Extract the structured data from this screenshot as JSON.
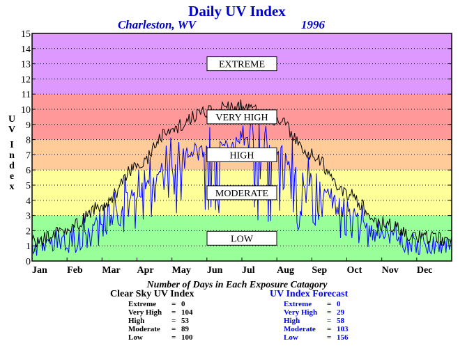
{
  "chart_data": {
    "type": "line",
    "title": "Daily UV Index",
    "subtitle_location": "Charleston, WV",
    "subtitle_year": "1996",
    "ylabel": "UV Index",
    "ylim": [
      0,
      15
    ],
    "yticks": [
      "0",
      "1",
      "2",
      "3",
      "4",
      "5",
      "6",
      "7",
      "8",
      "9",
      "10",
      "11",
      "12",
      "13",
      "14",
      "15"
    ],
    "xticks": [
      "Jan",
      "Feb",
      "Mar",
      "Apr",
      "May",
      "Jun",
      "Jul",
      "Aug",
      "Sep",
      "Oct",
      "Nov",
      "Dec"
    ],
    "grid": true,
    "bands": [
      {
        "label": "LOW",
        "from": 0,
        "to": 3,
        "color": "#99ff99"
      },
      {
        "label": "MODERATE",
        "from": 3,
        "to": 6,
        "color": "#ffff99"
      },
      {
        "label": "HIGH",
        "from": 6,
        "to": 8,
        "color": "#ffcc99"
      },
      {
        "label": "VERY HIGH",
        "from": 8,
        "to": 11,
        "color": "#ff9999"
      },
      {
        "label": "EXTREME",
        "from": 11,
        "to": 15,
        "color": "#dd99ff"
      }
    ],
    "clear_sky_monthly": [
      1.3,
      2.1,
      3.6,
      6.2,
      8.8,
      9.9,
      10.2,
      9.3,
      7.0,
      4.4,
      2.5,
      1.6,
      1.4
    ],
    "forecast_monthly": [
      0.9,
      1.3,
      2.6,
      4.5,
      6.2,
      7.3,
      7.6,
      7.0,
      5.2,
      3.2,
      1.7,
      1.0,
      0.9
    ],
    "series": [
      {
        "name": "Clear Sky UV Index",
        "color": "#000000"
      },
      {
        "name": "UV Index Forecast",
        "color": "#0000ff"
      }
    ]
  },
  "summary": {
    "caption": "Number of Days in Each Exposure Catagory",
    "clear": {
      "title": "Clear Sky UV Index",
      "rows": [
        {
          "label": "Extreme",
          "value": "0"
        },
        {
          "label": "Very High",
          "value": "104"
        },
        {
          "label": "High",
          "value": "53"
        },
        {
          "label": "Moderate",
          "value": "89"
        },
        {
          "label": "Low",
          "value": "100"
        }
      ]
    },
    "forecast": {
      "title": "UV Index Forecast",
      "rows": [
        {
          "label": "Extreme",
          "value": "0"
        },
        {
          "label": "Very High",
          "value": "29"
        },
        {
          "label": "High",
          "value": "58"
        },
        {
          "label": "Moderate",
          "value": "103"
        },
        {
          "label": "Low",
          "value": "156"
        }
      ]
    }
  }
}
